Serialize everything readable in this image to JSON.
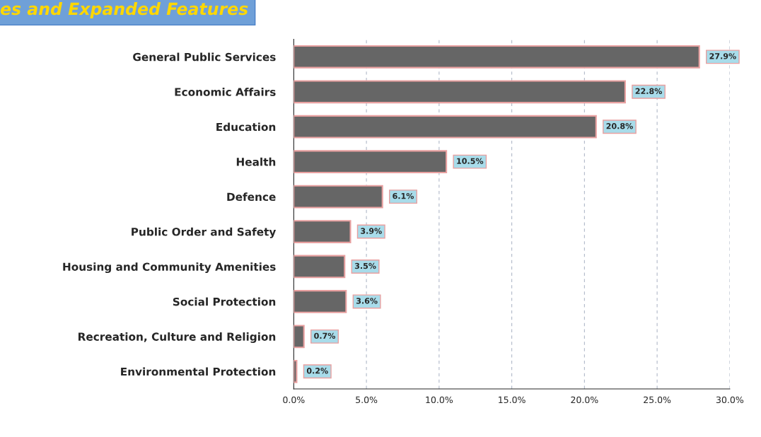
{
  "chart_data": {
    "type": "bar",
    "orientation": "horizontal",
    "title": "es and Expanded Features",
    "categories": [
      "General Public Services",
      "Economic Affairs",
      "Education",
      "Health",
      "Defence",
      "Public Order and Safety",
      "Housing and Community Amenities",
      "Social Protection",
      "Recreation, Culture and Religion",
      "Environmental Protection"
    ],
    "values": [
      27.9,
      22.8,
      20.8,
      10.5,
      6.1,
      3.9,
      3.5,
      3.6,
      0.7,
      0.2
    ],
    "value_labels": [
      "27.9%",
      "22.8%",
      "20.8%",
      "10.5%",
      "6.1%",
      "3.9%",
      "3.5%",
      "3.6%",
      "0.7%",
      "0.2%"
    ],
    "color": "#666666",
    "xlim": [
      0,
      30
    ],
    "xticks": [
      {
        "value": 0,
        "label": "0.0%"
      },
      {
        "value": 5,
        "label": "5.0%"
      },
      {
        "value": 10,
        "label": "10.0%"
      },
      {
        "value": 15,
        "label": "15.0%"
      },
      {
        "value": 20,
        "label": "20.0%"
      },
      {
        "value": 25,
        "label": "25.0%"
      },
      {
        "value": 30,
        "label": "30.0%"
      }
    ],
    "grid": "x",
    "legend": false
  }
}
